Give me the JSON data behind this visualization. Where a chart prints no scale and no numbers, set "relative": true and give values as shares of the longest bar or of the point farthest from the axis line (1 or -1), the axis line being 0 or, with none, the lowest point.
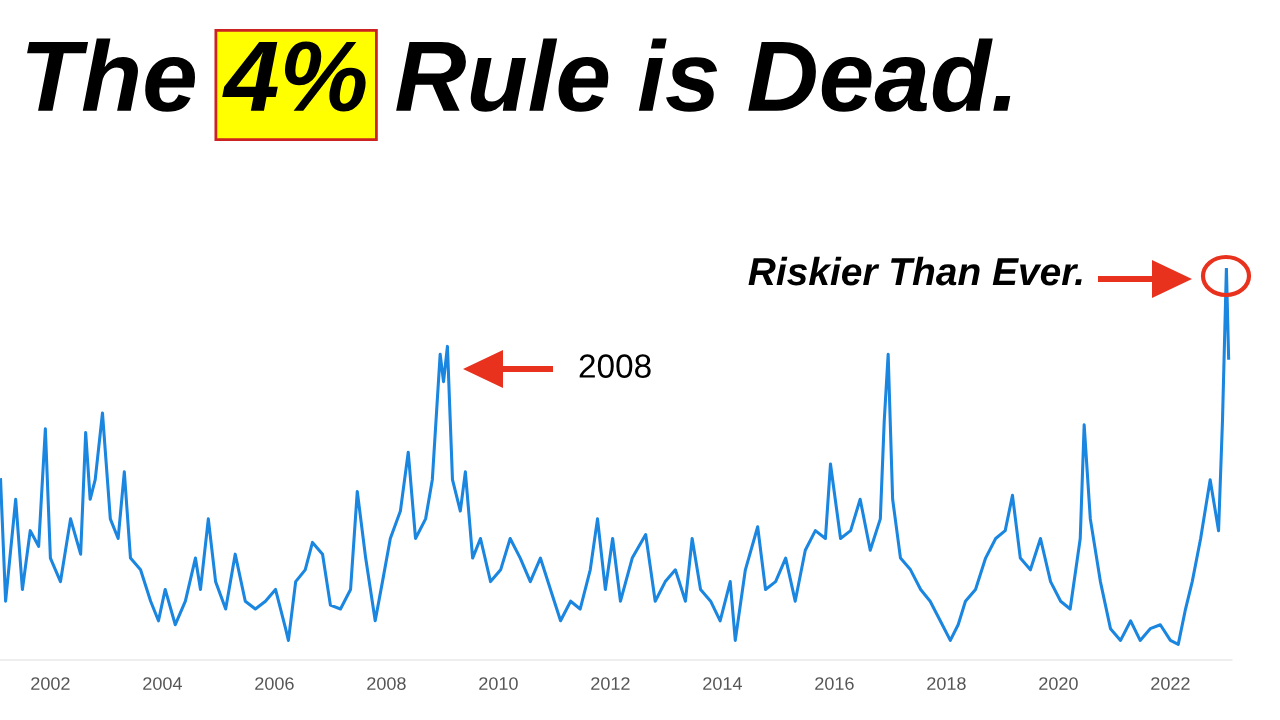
{
  "chart_data": {
    "type": "line",
    "title": "The 4% Rule is Dead.",
    "relative": true,
    "tick_labels": "x",
    "grid": false,
    "legend": false,
    "xlim": [
      2001.1,
      2023.1
    ],
    "xticks": [
      2002,
      2004,
      2006,
      2008,
      2010,
      2012,
      2014,
      2016,
      2018,
      2020,
      2022
    ],
    "x": [
      2001.11,
      2001.2,
      2001.38,
      2001.5,
      2001.64,
      2001.79,
      2001.91,
      2002.0,
      2002.18,
      2002.36,
      2002.54,
      2002.63,
      2002.71,
      2002.8,
      2002.93,
      2003.07,
      2003.21,
      2003.32,
      2003.43,
      2003.61,
      2003.79,
      2003.93,
      2004.05,
      2004.23,
      2004.41,
      2004.59,
      2004.68,
      2004.82,
      2004.95,
      2005.13,
      2005.3,
      2005.48,
      2005.66,
      2005.84,
      2006.02,
      2006.2,
      2006.25,
      2006.38,
      2006.55,
      2006.68,
      2006.86,
      2007.0,
      2007.18,
      2007.36,
      2007.48,
      2007.63,
      2007.8,
      2007.93,
      2008.07,
      2008.25,
      2008.39,
      2008.52,
      2008.7,
      2008.82,
      2008.96,
      2009.02,
      2009.09,
      2009.18,
      2009.32,
      2009.41,
      2009.54,
      2009.68,
      2009.86,
      2010.04,
      2010.21,
      2010.39,
      2010.57,
      2010.75,
      2010.93,
      2011.11,
      2011.29,
      2011.46,
      2011.64,
      2011.77,
      2011.91,
      2012.04,
      2012.18,
      2012.39,
      2012.63,
      2012.8,
      2012.98,
      2013.16,
      2013.34,
      2013.46,
      2013.61,
      2013.79,
      2013.96,
      2014.14,
      2014.23,
      2014.41,
      2014.63,
      2014.77,
      2014.95,
      2015.13,
      2015.3,
      2015.48,
      2015.66,
      2015.84,
      2015.93,
      2016.11,
      2016.29,
      2016.46,
      2016.64,
      2016.82,
      2016.89,
      2016.96,
      2017.04,
      2017.18,
      2017.36,
      2017.54,
      2017.71,
      2017.89,
      2018.07,
      2018.21,
      2018.34,
      2018.52,
      2018.7,
      2018.88,
      2019.05,
      2019.18,
      2019.32,
      2019.5,
      2019.68,
      2019.86,
      2020.04,
      2020.21,
      2020.39,
      2020.46,
      2020.57,
      2020.75,
      2020.93,
      2021.11,
      2021.29,
      2021.46,
      2021.64,
      2021.82,
      2022.0,
      2022.14,
      2022.27,
      2022.39,
      2022.54,
      2022.71,
      2022.86,
      2022.93,
      2023.0,
      2023.04
    ],
    "series": [
      {
        "color": "#1a86e0",
        "values": [
          0.46,
          0.15,
          0.41,
          0.18,
          0.33,
          0.29,
          0.59,
          0.26,
          0.2,
          0.36,
          0.27,
          0.58,
          0.41,
          0.46,
          0.63,
          0.36,
          0.31,
          0.48,
          0.26,
          0.23,
          0.15,
          0.1,
          0.18,
          0.09,
          0.15,
          0.26,
          0.18,
          0.36,
          0.2,
          0.13,
          0.27,
          0.15,
          0.13,
          0.15,
          0.18,
          0.08,
          0.05,
          0.2,
          0.23,
          0.3,
          0.27,
          0.14,
          0.13,
          0.18,
          0.43,
          0.26,
          0.1,
          0.2,
          0.31,
          0.38,
          0.53,
          0.31,
          0.36,
          0.46,
          0.78,
          0.71,
          0.8,
          0.46,
          0.38,
          0.48,
          0.26,
          0.31,
          0.2,
          0.23,
          0.31,
          0.26,
          0.2,
          0.26,
          0.18,
          0.1,
          0.15,
          0.13,
          0.23,
          0.36,
          0.18,
          0.31,
          0.15,
          0.26,
          0.32,
          0.15,
          0.2,
          0.23,
          0.15,
          0.31,
          0.18,
          0.15,
          0.1,
          0.2,
          0.05,
          0.23,
          0.34,
          0.18,
          0.2,
          0.26,
          0.15,
          0.28,
          0.33,
          0.31,
          0.5,
          0.31,
          0.33,
          0.41,
          0.28,
          0.36,
          0.61,
          0.78,
          0.41,
          0.26,
          0.23,
          0.18,
          0.15,
          0.1,
          0.05,
          0.09,
          0.15,
          0.18,
          0.26,
          0.31,
          0.33,
          0.42,
          0.26,
          0.23,
          0.31,
          0.2,
          0.15,
          0.13,
          0.31,
          0.6,
          0.36,
          0.2,
          0.08,
          0.05,
          0.1,
          0.05,
          0.08,
          0.09,
          0.05,
          0.04,
          0.13,
          0.2,
          0.31,
          0.46,
          0.33,
          0.61,
          1.0,
          0.77
        ]
      }
    ],
    "annotations": [
      "2008",
      "Riskier Than Ever."
    ]
  }
}
